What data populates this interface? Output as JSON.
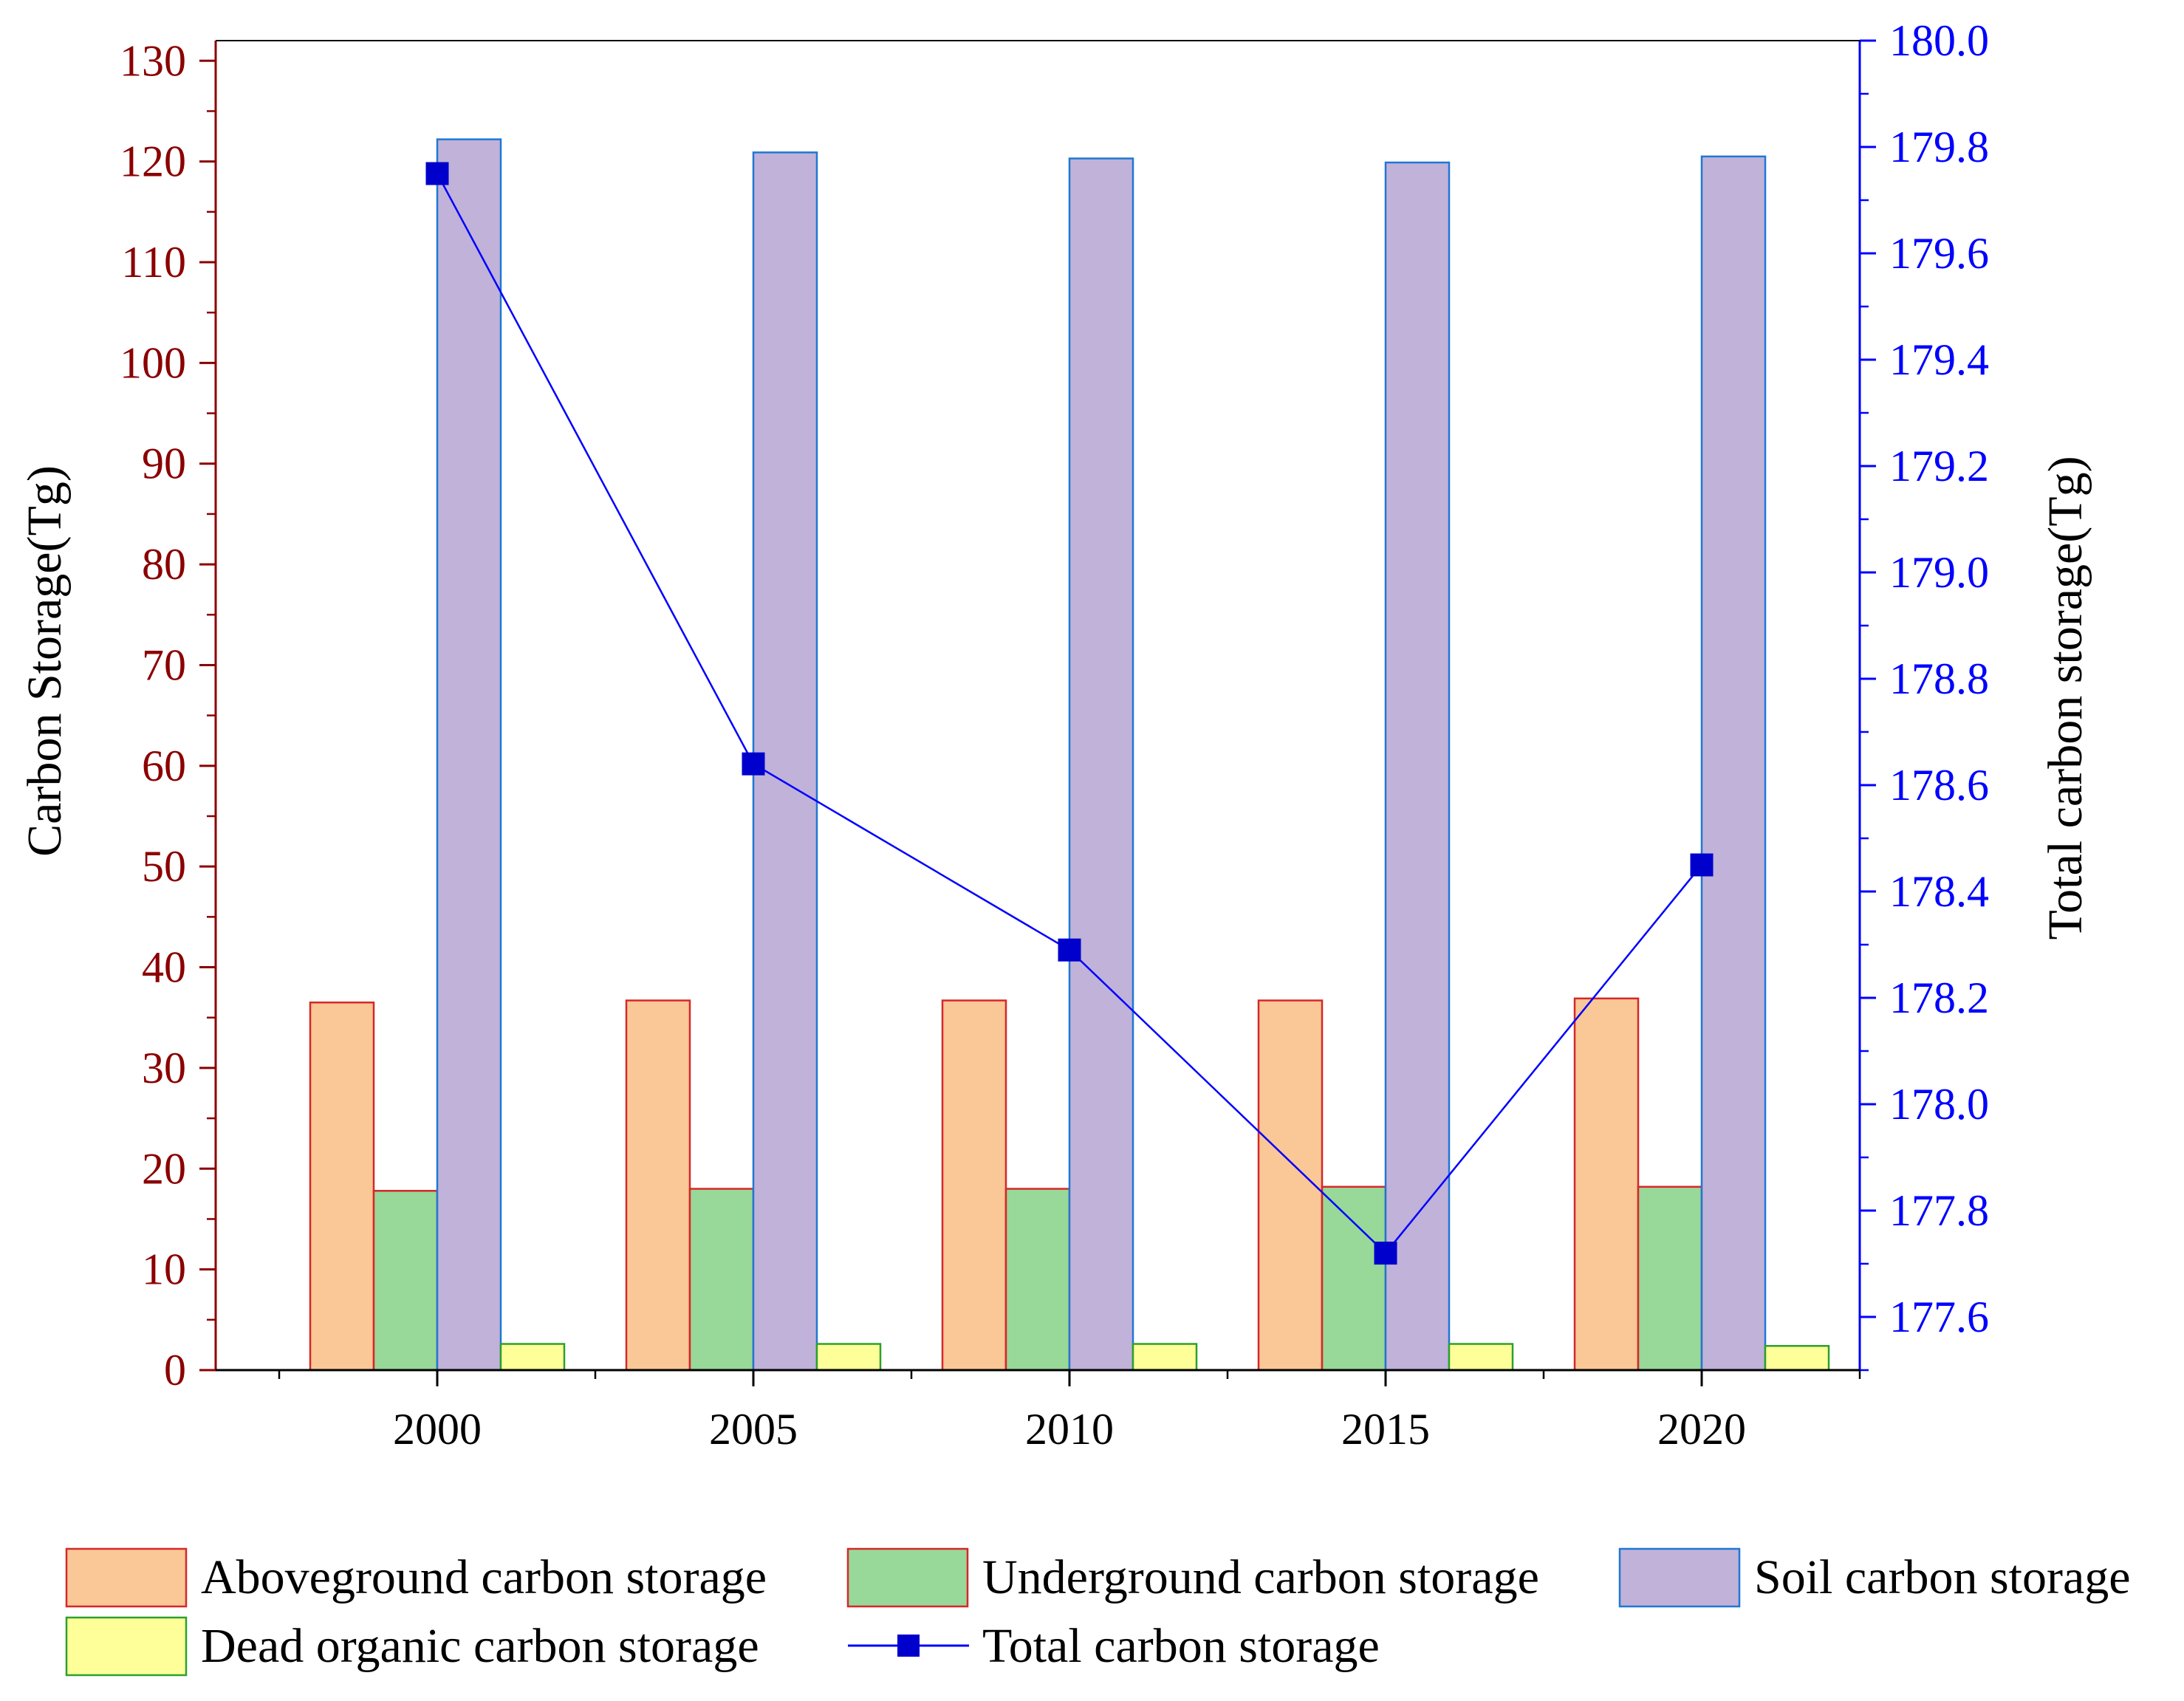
{
  "chart_data": {
    "type": "bar",
    "categories": [
      "2000",
      "2005",
      "2010",
      "2015",
      "2020"
    ],
    "series": [
      {
        "name": "Aboveground carbon storage",
        "axis": "left",
        "color": "#f9c896",
        "stroke": "#d62728",
        "values": [
          36.5,
          36.7,
          36.7,
          36.7,
          36.9
        ]
      },
      {
        "name": "Underground carbon storage",
        "axis": "left",
        "color": "#98d898",
        "stroke": "#d62728",
        "values": [
          17.8,
          18.0,
          18.0,
          18.2,
          18.2
        ]
      },
      {
        "name": "Soil carbon storage",
        "axis": "left",
        "color": "#c0b2d8",
        "stroke": "#1f77d4",
        "values": [
          122.2,
          120.9,
          120.3,
          119.9,
          120.5
        ]
      },
      {
        "name": "Dead organic carbon storage",
        "axis": "left",
        "color": "#ffff99",
        "stroke": "#2ca02c",
        "values": [
          2.6,
          2.6,
          2.6,
          2.6,
          2.4
        ]
      }
    ],
    "line_series": {
      "name": "Total carbon storage",
      "axis": "right",
      "color": "#0000ff",
      "marker_color": "#0000cc",
      "values": [
        179.75,
        178.64,
        178.29,
        177.72,
        178.45
      ]
    },
    "ylabel": "Carbon Storage(Tg)",
    "ylabel_right": "Total carbon storage(Tg)",
    "xlabel": "",
    "ylim": [
      0,
      132
    ],
    "ylim_right": [
      177.5,
      180.0
    ],
    "yticks": [
      "0",
      "10",
      "20",
      "30",
      "40",
      "50",
      "60",
      "70",
      "80",
      "90",
      "100",
      "110",
      "120",
      "130"
    ],
    "yticks_right": [
      "177.6",
      "177.8",
      "178.0",
      "178.2",
      "178.4",
      "178.6",
      "178.8",
      "179.0",
      "179.2",
      "179.4",
      "179.6",
      "179.8",
      "180.0"
    ],
    "left_axis_color": "#8b0000",
    "right_axis_color": "#0000ff",
    "legend_position": "bottom",
    "grid": false
  }
}
